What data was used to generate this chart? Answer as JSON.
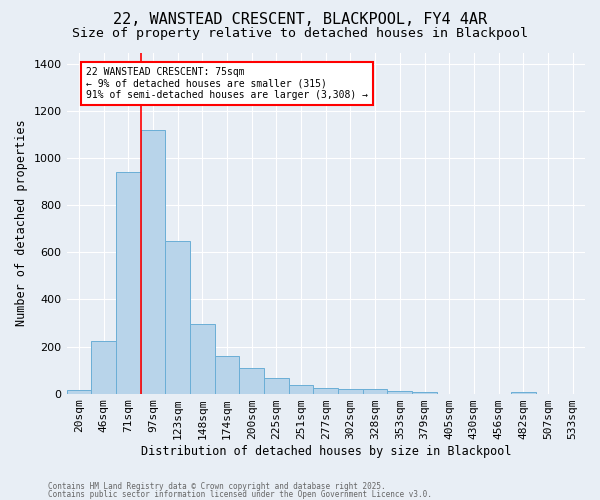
{
  "title1": "22, WANSTEAD CRESCENT, BLACKPOOL, FY4 4AR",
  "title2": "Size of property relative to detached houses in Blackpool",
  "xlabel": "Distribution of detached houses by size in Blackpool",
  "ylabel": "Number of detached properties",
  "categories": [
    "20sqm",
    "46sqm",
    "71sqm",
    "97sqm",
    "123sqm",
    "148sqm",
    "174sqm",
    "200sqm",
    "225sqm",
    "251sqm",
    "277sqm",
    "302sqm",
    "328sqm",
    "353sqm",
    "379sqm",
    "405sqm",
    "430sqm",
    "456sqm",
    "482sqm",
    "507sqm",
    "533sqm"
  ],
  "values": [
    15,
    225,
    940,
    1120,
    650,
    295,
    160,
    108,
    68,
    38,
    25,
    20,
    20,
    12,
    8,
    0,
    0,
    0,
    5,
    0,
    0
  ],
  "bar_color": "#b8d4ea",
  "bar_edge_color": "#6aaed6",
  "background_color": "#e8eef5",
  "red_line_x": 2.5,
  "annotation_text": "22 WANSTEAD CRESCENT: 75sqm\n← 9% of detached houses are smaller (315)\n91% of semi-detached houses are larger (3,308) →",
  "annotation_box_color": "white",
  "annotation_box_edge": "red",
  "footer1": "Contains HM Land Registry data © Crown copyright and database right 2025.",
  "footer2": "Contains public sector information licensed under the Open Government Licence v3.0.",
  "ylim": [
    0,
    1450
  ],
  "yticks": [
    0,
    200,
    400,
    600,
    800,
    1000,
    1200,
    1400
  ],
  "title1_fontsize": 11,
  "title2_fontsize": 9.5,
  "xlabel_fontsize": 8.5,
  "ylabel_fontsize": 8.5,
  "tick_fontsize": 8,
  "annot_fontsize": 7,
  "footer_fontsize": 5.5
}
